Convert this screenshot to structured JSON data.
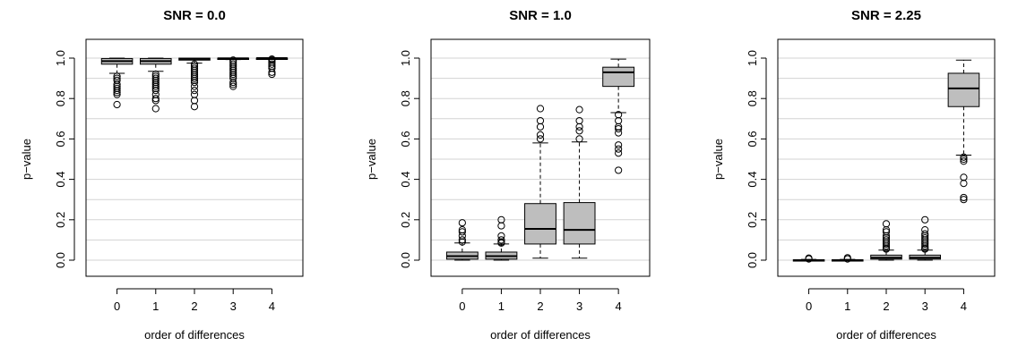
{
  "chart_data": [
    {
      "type": "boxplot",
      "title": "SNR = 0.0",
      "xlabel": "order of differences",
      "ylabel": "p−value",
      "categories": [
        "0",
        "1",
        "2",
        "3",
        "4"
      ],
      "ylim": [
        0,
        1
      ],
      "yticks": [
        "0.0",
        "0.2",
        "0.4",
        "0.6",
        "0.8",
        "1.0"
      ],
      "grid": "horizontal",
      "boxes": [
        {
          "whisker_low": 0.925,
          "q1": 0.97,
          "median": 0.985,
          "q3": 0.998,
          "whisker_high": 1.0,
          "outliers": [
            0.91,
            0.9,
            0.89,
            0.87,
            0.86,
            0.85,
            0.84,
            0.83,
            0.82,
            0.77
          ]
        },
        {
          "whisker_low": 0.935,
          "q1": 0.97,
          "median": 0.985,
          "q3": 0.998,
          "whisker_high": 1.0,
          "outliers": [
            0.92,
            0.91,
            0.9,
            0.89,
            0.88,
            0.87,
            0.86,
            0.85,
            0.84,
            0.82,
            0.8,
            0.79,
            0.75
          ]
        },
        {
          "whisker_low": 0.975,
          "q1": 0.99,
          "median": 0.996,
          "q3": 1.0,
          "whisker_high": 1.0,
          "outliers": [
            0.97,
            0.96,
            0.95,
            0.94,
            0.93,
            0.92,
            0.91,
            0.9,
            0.89,
            0.88,
            0.86,
            0.84,
            0.82,
            0.79,
            0.76
          ]
        },
        {
          "whisker_low": 0.993,
          "q1": 0.997,
          "median": 0.999,
          "q3": 1.0,
          "whisker_high": 1.0,
          "outliers": [
            0.99,
            0.98,
            0.97,
            0.96,
            0.95,
            0.94,
            0.93,
            0.92,
            0.91,
            0.9,
            0.88,
            0.87,
            0.86
          ]
        },
        {
          "whisker_low": 0.998,
          "q1": 0.999,
          "median": 1.0,
          "q3": 1.0,
          "whisker_high": 1.0,
          "outliers": [
            0.995,
            0.99,
            0.98,
            0.97,
            0.96,
            0.95,
            0.93,
            0.92
          ]
        }
      ]
    },
    {
      "type": "boxplot",
      "title": "SNR = 1.0",
      "xlabel": "order of differences",
      "ylabel": "p−value",
      "categories": [
        "0",
        "1",
        "2",
        "3",
        "4"
      ],
      "ylim": [
        0,
        1
      ],
      "yticks": [
        "0.0",
        "0.2",
        "0.4",
        "0.6",
        "0.8",
        "1.0"
      ],
      "grid": "horizontal",
      "boxes": [
        {
          "whisker_low": 0.0,
          "q1": 0.005,
          "median": 0.02,
          "q3": 0.04,
          "whisker_high": 0.085,
          "outliers": [
            0.09,
            0.1,
            0.12,
            0.14,
            0.15,
            0.185
          ]
        },
        {
          "whisker_low": 0.0,
          "q1": 0.005,
          "median": 0.02,
          "q3": 0.04,
          "whisker_high": 0.08,
          "outliers": [
            0.085,
            0.09,
            0.1,
            0.12,
            0.17,
            0.2
          ]
        },
        {
          "whisker_low": 0.01,
          "q1": 0.08,
          "median": 0.155,
          "q3": 0.28,
          "whisker_high": 0.58,
          "outliers": [
            0.6,
            0.62,
            0.66,
            0.69,
            0.75
          ]
        },
        {
          "whisker_low": 0.01,
          "q1": 0.08,
          "median": 0.15,
          "q3": 0.285,
          "whisker_high": 0.585,
          "outliers": [
            0.6,
            0.64,
            0.66,
            0.69,
            0.745
          ]
        },
        {
          "whisker_low": 0.73,
          "q1": 0.86,
          "median": 0.93,
          "q3": 0.955,
          "whisker_high": 0.995,
          "outliers": [
            0.72,
            0.69,
            0.66,
            0.65,
            0.63,
            0.57,
            0.55,
            0.53,
            0.445
          ]
        }
      ]
    },
    {
      "type": "boxplot",
      "title": "SNR = 2.25",
      "xlabel": "order of differences",
      "ylabel": "p−value",
      "categories": [
        "0",
        "1",
        "2",
        "3",
        "4"
      ],
      "ylim": [
        0,
        1
      ],
      "yticks": [
        "0.0",
        "0.2",
        "0.4",
        "0.6",
        "0.8",
        "1.0"
      ],
      "grid": "horizontal",
      "boxes": [
        {
          "whisker_low": 0.0,
          "q1": 0.0,
          "median": 0.0,
          "q3": 0.002,
          "whisker_high": 0.004,
          "outliers": [
            0.006,
            0.01
          ]
        },
        {
          "whisker_low": 0.0,
          "q1": 0.0,
          "median": 0.0,
          "q3": 0.002,
          "whisker_high": 0.004,
          "outliers": [
            0.006,
            0.012
          ]
        },
        {
          "whisker_low": 0.0,
          "q1": 0.005,
          "median": 0.012,
          "q3": 0.025,
          "whisker_high": 0.05,
          "outliers": [
            0.055,
            0.06,
            0.07,
            0.08,
            0.09,
            0.1,
            0.11,
            0.12,
            0.14,
            0.15,
            0.18
          ]
        },
        {
          "whisker_low": 0.0,
          "q1": 0.005,
          "median": 0.012,
          "q3": 0.025,
          "whisker_high": 0.05,
          "outliers": [
            0.055,
            0.06,
            0.07,
            0.08,
            0.09,
            0.1,
            0.11,
            0.12,
            0.13,
            0.15,
            0.2
          ]
        },
        {
          "whisker_low": 0.52,
          "q1": 0.76,
          "median": 0.85,
          "q3": 0.925,
          "whisker_high": 0.99,
          "outliers": [
            0.51,
            0.5,
            0.49,
            0.41,
            0.38,
            0.31,
            0.3
          ]
        }
      ]
    }
  ]
}
